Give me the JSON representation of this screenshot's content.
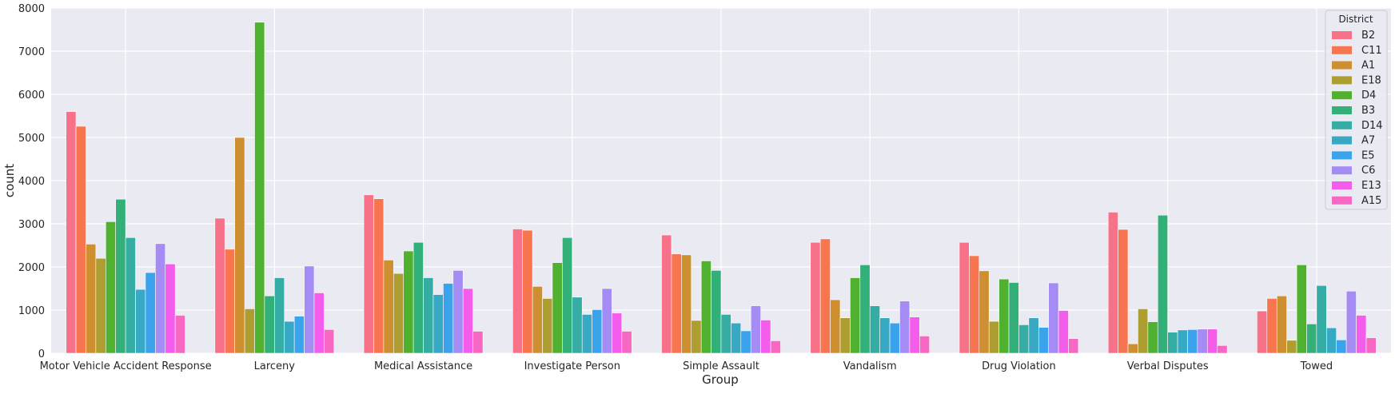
{
  "chart_data": {
    "type": "bar",
    "xlabel": "Group",
    "ylabel": "count",
    "ylim": [
      0,
      8000
    ],
    "yticks": [
      "0",
      "1000",
      "2000",
      "3000",
      "4000",
      "5000",
      "6000",
      "7000",
      "8000"
    ],
    "grid": true,
    "legend": {
      "title": "District",
      "placement": "top-right"
    },
    "categories": [
      "Motor Vehicle Accident Response",
      "Larceny",
      "Medical Assistance",
      "Investigate Person",
      "Simple Assault",
      "Vandalism",
      "Drug Violation",
      "Verbal Disputes",
      "Towed"
    ],
    "series": [
      {
        "name": "B2",
        "color": "#f77189",
        "values": [
          5600,
          3130,
          3670,
          2880,
          2740,
          2570,
          2570,
          3270,
          980
        ]
      },
      {
        "name": "C11",
        "color": "#f7754f",
        "values": [
          5260,
          2410,
          3580,
          2850,
          2300,
          2650,
          2260,
          2870,
          1270
        ]
      },
      {
        "name": "A1",
        "color": "#ce8f31",
        "values": [
          2530,
          5000,
          2160,
          1550,
          2280,
          1240,
          1910,
          220,
          1330
        ]
      },
      {
        "name": "E18",
        "color": "#ae9d31",
        "values": [
          2200,
          1030,
          1850,
          1270,
          760,
          820,
          740,
          1030,
          300
        ]
      },
      {
        "name": "D4",
        "color": "#50b131",
        "values": [
          3050,
          7670,
          2370,
          2100,
          2140,
          1750,
          1720,
          730,
          2050
        ]
      },
      {
        "name": "B3",
        "color": "#33b07a",
        "values": [
          3570,
          1330,
          2570,
          2680,
          1920,
          2050,
          1640,
          3200,
          680
        ]
      },
      {
        "name": "D14",
        "color": "#35aca4",
        "values": [
          2680,
          1750,
          1750,
          1300,
          900,
          1100,
          660,
          490,
          1570
        ]
      },
      {
        "name": "A7",
        "color": "#38a9c5",
        "values": [
          1480,
          740,
          1360,
          900,
          700,
          820,
          820,
          540,
          590
        ]
      },
      {
        "name": "E5",
        "color": "#3ba3ec",
        "values": [
          1870,
          860,
          1620,
          1010,
          520,
          700,
          600,
          550,
          310
        ]
      },
      {
        "name": "C6",
        "color": "#a48cf4",
        "values": [
          2540,
          2020,
          1920,
          1500,
          1100,
          1210,
          1630,
          560,
          1440
        ]
      },
      {
        "name": "E13",
        "color": "#f45deb",
        "values": [
          2070,
          1400,
          1500,
          930,
          770,
          840,
          990,
          560,
          880
        ]
      },
      {
        "name": "A15",
        "color": "#f668c2",
        "values": [
          880,
          550,
          510,
          510,
          290,
          400,
          340,
          180,
          360
        ]
      }
    ]
  }
}
